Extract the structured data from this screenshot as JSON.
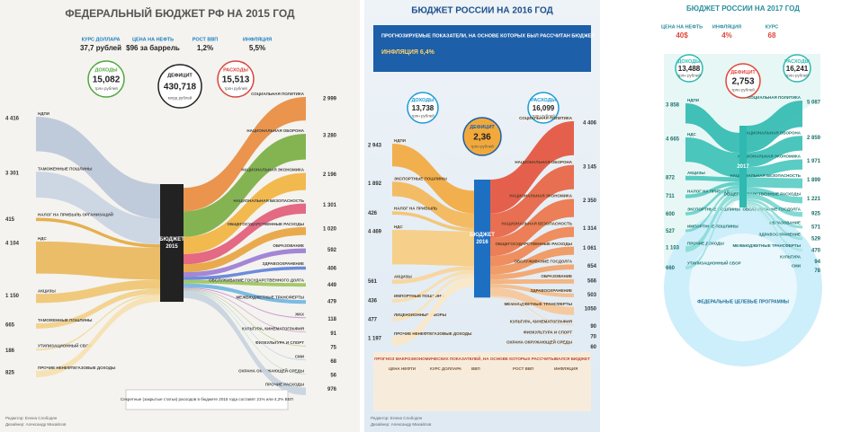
{
  "panels": [
    {
      "title": "ФЕДЕРАЛЬНЫЙ БЮДЖЕТ РФ НА 2015 ГОД",
      "indicators": [
        {
          "label": "КУРС ДОЛЛАРА",
          "value": "37,7 рублей"
        },
        {
          "label": "ЦЕНА НА НЕФТЬ",
          "value": "$96 за баррель"
        },
        {
          "label": "РОСТ ВВП",
          "value": "1,2%"
        },
        {
          "label": "ИНФЛЯЦИЯ",
          "value": "5,5%"
        }
      ],
      "income": {
        "label": "ДОХОДЫ",
        "value": "15,082",
        "unit": "трлн рублей"
      },
      "deficit": {
        "label": "ДЕФИЦИТ",
        "value": "430,718",
        "unit": "млрд рублей"
      },
      "expenses": {
        "label": "РАСХОДЫ",
        "value": "15,513",
        "unit": "трлн рублей"
      },
      "center": [
        "БЮДЖЕТ",
        "2015"
      ],
      "left": [
        {
          "name": "НДПИ",
          "amount": {
            "value": 4416,
            "label": "4 416"
          },
          "color": "#b9c6d8"
        },
        {
          "name": "ТАМОЖЕННЫЕ ПОШЛИНЫ",
          "amount": {
            "value": 3301,
            "label": "3 301"
          },
          "color": "#c9d3e1"
        },
        {
          "name": "НАЛОГ НА ПРИБЫЛЬ ОРГАНИЗАЦИЙ",
          "amount": 415,
          "color": "#e3a93c"
        },
        {
          "name": "НДС",
          "amount": {
            "value": 4104,
            "label": "4 104"
          },
          "color": "#eab75a"
        },
        {
          "name": "АКЦИЗЫ",
          "amount": {
            "value": 1150,
            "label": "1 150"
          },
          "color": "#efc46f"
        },
        {
          "name": "ТАМОЖЕННЫЕ ПОШЛИНЫ",
          "amount": 665,
          "color": "#f2cf86"
        },
        {
          "name": "УТИЛИЗАЦИОННЫЙ СБОР",
          "amount": 186,
          "color": "#f4d89a"
        },
        {
          "name": "ПРОЧИЕ НЕНЕФТЕГАЗОВЫЕ ДОХОДЫ",
          "amount": 825,
          "color": "#f6e0ae"
        }
      ],
      "right": [
        {
          "name": "СОЦИАЛЬНАЯ ПОЛИТИКА",
          "amount": {
            "value": 2999,
            "label": "2 999"
          },
          "color": "#e9893c"
        },
        {
          "name": "НАЦИОНАЛЬНАЯ ОБОРОНА",
          "amount": {
            "value": 3280,
            "label": "3 280"
          },
          "color": "#78ad3f"
        },
        {
          "name": "НАЦИОНАЛЬНАЯ ЭКОНОМИКА",
          "amount": {
            "value": 2196,
            "label": "2 196"
          },
          "color": "#f2b33d"
        },
        {
          "name": "НАЦИОНАЛЬНАЯ БЕЗОПАСНОСТЬ",
          "amount": {
            "value": 1301,
            "label": "1 301"
          },
          "color": "#e25a77"
        },
        {
          "name": "ОБЩЕГОСУДАРСТВЕННЫЕ РАСХОДЫ",
          "amount": {
            "value": 1020,
            "label": "1 020"
          },
          "color": "#e8a23c"
        },
        {
          "name": "ОБРАЗОВАНИЕ",
          "amount": 592,
          "color": "#9a7bd3"
        },
        {
          "name": "ЗДРАВООХРАНЕНИЕ",
          "amount": 406,
          "color": "#5f7fd8"
        },
        {
          "name": "ОБСЛУЖИВАНИЕ ГОСУДАРСТВЕННОГО ДОЛГА",
          "amount": 449,
          "color": "#9bc35a"
        },
        {
          "name": "МЕЖБЮДЖЕТНЫЕ ТРАНСФЕРТЫ",
          "amount": 479,
          "color": "#6fb5e0"
        },
        {
          "name": "ЖКХ",
          "amount": 118,
          "color": "#c78fd0"
        },
        {
          "name": "КУЛЬТУРА, КИНЕМАТОГРАФИЯ",
          "amount": 91,
          "color": "#d6a2c8"
        },
        {
          "name": "ФИЗКУЛЬТУРА И СПОРТ",
          "amount": 75,
          "color": "#b4c97a"
        },
        {
          "name": "СМИ",
          "amount": 68,
          "color": "#9fc4da"
        },
        {
          "name": "ОХРАНА ОКРУЖАЮЩЕЙ СРЕДЫ",
          "amount": 56,
          "color": "#8fcf9a"
        },
        {
          "name": "ПРОЧИЕ РАСХОДЫ",
          "amount": 976,
          "color": "#c6d3de"
        }
      ],
      "note": "Секретные (закрытые статьи) расходов в бюджете 2015 года составят 21% или 4,2% ВВП",
      "credits": [
        "Редактор: Елена Слободян",
        "Дизайнер: Александр Михайлов"
      ]
    },
    {
      "title": "БЮДЖЕТ РОССИИ НА 2016 ГОД",
      "indicators": [
        {
          "label": "ПРОГНОЗИРУЕМЫЕ ПОКАЗАТЕЛИ, НА ОСНОВЕ КОТОРЫХ БЫЛ РАССЧИТАН БЮДЖЕТ",
          "value": "ИНФЛЯЦИЯ 6,4%"
        }
      ],
      "income": {
        "label": "ДОХОДЫ",
        "value": "13,738",
        "unit": "трлн рублей"
      },
      "deficit": {
        "label": "ДЕФИЦИТ",
        "value": "2,36",
        "unit": "трлн рублей"
      },
      "expenses": {
        "label": "РАСХОДЫ",
        "value": "16,099",
        "unit": "трлн рублей"
      },
      "center": [
        "БЮДЖЕТ",
        "2016"
      ],
      "left": [
        {
          "name": "НДПИ",
          "amount": {
            "value": 2943,
            "label": "2 943"
          },
          "color": "#f2a93b"
        },
        {
          "name": "ЭКСПОРТНЫЕ ПОШЛИНЫ",
          "amount": {
            "value": 1892,
            "label": "1 892"
          },
          "color": "#f4b654"
        },
        {
          "name": "НАЛОГ НА ПРИБЫЛЬ",
          "amount": 426,
          "color": "#f5c16c"
        },
        {
          "name": "НДС",
          "amount": {
            "value": 4469,
            "label": "4 469"
          },
          "color": "#f7cb80"
        },
        {
          "name": "АКЦИЗЫ",
          "amount": 561,
          "color": "#f8d496"
        },
        {
          "name": "ИМПОРТНЫЕ ПОШЛИНЫ",
          "amount": 436,
          "color": "#f9dba8"
        },
        {
          "name": "ЛИЦЕНЗИОННЫЕ СБОРЫ",
          "amount": 477,
          "color": "#fae2b8"
        },
        {
          "name": "ПРОЧИЕ НЕНЕФТЕГАЗОВЫЕ ДОХОДЫ",
          "amount": {
            "value": 1197,
            "label": "1 197"
          },
          "color": "#fbe8c6"
        }
      ],
      "right": [
        {
          "name": "СОЦИАЛЬНАЯ ПОЛИТИКА",
          "amount": {
            "value": 4406,
            "label": "4 406"
          },
          "color": "#e4503a"
        },
        {
          "name": "НАЦИОНАЛЬНАЯ ОБОРОНА",
          "amount": {
            "value": 3145,
            "label": "3 145"
          },
          "color": "#e8613f"
        },
        {
          "name": "НАЦИОНАЛЬНАЯ ЭКОНОМИКА",
          "amount": {
            "value": 2350,
            "label": "2 350"
          },
          "color": "#ec7246"
        },
        {
          "name": "НАЦИОНАЛЬНАЯ БЕЗОПАСНОСТЬ",
          "amount": {
            "value": 1314,
            "label": "1 314"
          },
          "color": "#ef834f"
        },
        {
          "name": "ОБЩЕГОСУДАРСТВЕННЫЕ РАСХОДЫ",
          "amount": {
            "value": 1061,
            "label": "1 061"
          },
          "color": "#f1935a"
        },
        {
          "name": "ОБСЛУЖИВАНИЕ ГОСДОЛГА",
          "amount": 654,
          "color": "#f3a167"
        },
        {
          "name": "ОБРАЗОВАНИЕ",
          "amount": 566,
          "color": "#f4ae76"
        },
        {
          "name": "ЗДРАВООХРАНЕНИЕ",
          "amount": 503,
          "color": "#f5ba86"
        },
        {
          "name": "МЕЖБЮДЖЕТНЫЕ ТРАНСФЕРТЫ",
          "amount": 1050,
          "color": "#f6c597"
        },
        {
          "name": "КУЛЬТУРА, КИНЕМАТОГРАФИЯ",
          "amount": 90,
          "color": "#f7cfa8"
        },
        {
          "name": "ФИЗКУЛЬТУРА И СПОРТ",
          "amount": 70,
          "color": "#f8d8b8"
        },
        {
          "name": "ОХРАНА ОКРУЖАЮЩЕЙ СРЕДЫ",
          "amount": 60,
          "color": "#f9e0c6"
        }
      ],
      "table_title": "ПРОГНОЗ МАКРОЭКОНОМИЧЕСКИХ ПОКАЗАТЕЛЕЙ, НА ОСНОВЕ КОТОРЫХ РАССЧИТЫВАЛСЯ БЮДЖЕТ",
      "table_headers": [
        "ЦЕНА НЕФТИ",
        "КУРС ДОЛЛАРА",
        "ВВП",
        "РОСТ ВВП",
        "ИНФЛЯЦИЯ"
      ],
      "credits": [
        "Редактор: Елена Слободян",
        "Дизайнер: Александр Михайлов"
      ]
    },
    {
      "title": "БЮДЖЕТ РОССИИ НА 2017 ГОД",
      "indicators": [
        {
          "label": "ЦЕНА НА НЕФТЬ",
          "value": "40$"
        },
        {
          "label": "ИНФЛЯЦИЯ",
          "value": "4%"
        },
        {
          "label": "КУРС",
          "value": "68"
        }
      ],
      "income": {
        "label": "ДОХОДЫ",
        "value": "13,488",
        "unit": "трлн рублей"
      },
      "deficit": {
        "label": "ДЕФИЦИТ",
        "value": "2,753",
        "unit": "трлн рублей"
      },
      "expenses": {
        "label": "РАСХОДЫ",
        "value": "16,241",
        "unit": "трлн рублей"
      },
      "center": [
        "2017"
      ],
      "left": [
        {
          "name": "НДПИ",
          "amount": {
            "value": 3858,
            "label": "3 858"
          },
          "color": "#2fb9b0"
        },
        {
          "name": "НДС",
          "amount": {
            "value": 4665,
            "label": "4 665"
          },
          "color": "#39c0b6"
        },
        {
          "name": "АКЦИЗЫ",
          "amount": 872,
          "color": "#47c6bd"
        },
        {
          "name": "НАЛОГ НА ПРИБЫЛЬ",
          "amount": 711,
          "color": "#56ccc4"
        },
        {
          "name": "ЭКСПОРТНЫЕ ПОШЛИНЫ",
          "amount": 600,
          "color": "#66d1ca"
        },
        {
          "name": "ИМПОРТНЫЕ ПОШЛИНЫ",
          "amount": 527,
          "color": "#76d6d0"
        },
        {
          "name": "ПРОЧИЕ ДОХОДЫ",
          "amount": {
            "value": 1103,
            "label": "1 103"
          },
          "color": "#86dbd5"
        },
        {
          "name": "УТИЛИЗАЦИОННЫЙ СБОР",
          "amount": 660,
          "color": "#98e0db"
        }
      ],
      "right": [
        {
          "name": "СОЦИАЛЬНАЯ ПОЛИТИКА",
          "amount": {
            "value": 5087,
            "label": "5 087"
          },
          "color": "#2fb9b0"
        },
        {
          "name": "НАЦИОНАЛЬНАЯ ОБОРОНА",
          "amount": {
            "value": 2859,
            "label": "2 859"
          },
          "color": "#39c0b6"
        },
        {
          "name": "НАЦИОНАЛЬНАЯ ЭКОНОМИКА",
          "amount": {
            "value": 1971,
            "label": "1 971"
          },
          "color": "#47c6bd"
        },
        {
          "name": "НАЦИОНАЛЬНАЯ БЕЗОПАСНОСТЬ",
          "amount": {
            "value": 1899,
            "label": "1 899"
          },
          "color": "#56ccc4"
        },
        {
          "name": "ОБЩЕГОСУДАРСТВЕННЫЕ РАСХОДЫ",
          "amount": {
            "value": 1221,
            "label": "1 221"
          },
          "color": "#66d1ca"
        },
        {
          "name": "ОБСЛУЖИВАНИЕ ГОСДОЛГА",
          "amount": 925,
          "color": "#76d6d0"
        },
        {
          "name": "ОБРАЗОВАНИЕ",
          "amount": 571,
          "color": "#86dbd5"
        },
        {
          "name": "ЗДРАВООХРАНЕНИЕ",
          "amount": 529,
          "color": "#98e0db"
        },
        {
          "name": "МЕЖБЮДЖЕТНЫЕ ТРАНСФЕРТЫ",
          "amount": 470,
          "color": "#a8e5e0"
        },
        {
          "name": "КУЛЬТУРА",
          "amount": 94,
          "color": "#b8e9e5"
        },
        {
          "name": "СМИ",
          "amount": 78,
          "color": "#c6eeea"
        }
      ],
      "programs": "ФЕДЕРАЛЬНЫЕ ЦЕЛЕВЫЕ ПРОГРАММЫ"
    }
  ]
}
